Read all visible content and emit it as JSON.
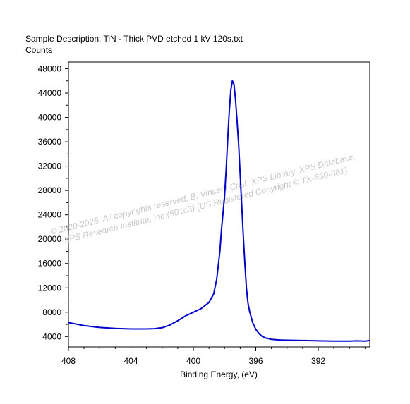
{
  "header": {
    "sample_description": "Sample Description:  TiN - Thick PVD etched 1 kV 120s.txt",
    "y_unit": "Counts"
  },
  "watermark": {
    "line1": "© 2020-2025,  All copyrights reserved,    B. Vincent Crist,  XPS Library, XPS Database,",
    "line2": "XPS Research Institute, Inc (501c3)   (US Registered Copyright © TX-560-881)"
  },
  "colors": {
    "series": "#0000cc",
    "axis": "#000000",
    "watermark": "#c8c8c8"
  },
  "chart_data": {
    "type": "line",
    "title": "",
    "xlabel": "Binding Energy, (eV)",
    "ylabel": "Counts",
    "x_reversed": true,
    "xlim": [
      408,
      388.7
    ],
    "ylim": [
      2300,
      49100
    ],
    "x_ticks": [
      408,
      404,
      400,
      396,
      392
    ],
    "x_tick_labels": [
      "408",
      "404",
      "400",
      "396",
      "392"
    ],
    "y_ticks": [
      4000,
      8000,
      12000,
      16000,
      20000,
      24000,
      28000,
      32000,
      36000,
      40000,
      44000,
      48000
    ],
    "y_tick_labels": [
      "4000",
      "8000",
      "12000",
      "16000",
      "20000",
      "24000",
      "28000",
      "32000",
      "36000",
      "40000",
      "44000",
      "48000"
    ],
    "grid": false,
    "legend": "none",
    "series": [
      {
        "x": [
          408.0,
          407.0,
          406.0,
          405.0,
          404.0,
          403.0,
          402.5,
          402.0,
          401.5,
          401.0,
          400.5,
          400.0,
          399.5,
          399.0,
          398.7,
          398.5,
          398.3,
          398.2,
          398.0,
          397.9,
          397.8,
          397.7,
          397.6,
          397.5,
          397.4,
          397.3,
          397.2,
          397.1,
          397.0,
          396.9,
          396.8,
          396.7,
          396.6,
          396.5,
          396.4,
          396.3,
          396.2,
          396.0,
          395.8,
          395.6,
          395.4,
          395.0,
          394.5,
          394.0,
          393.0,
          392.0,
          391.0,
          390.0,
          389.5,
          389.0,
          388.7
        ],
        "y": [
          6300,
          5800,
          5500,
          5350,
          5250,
          5250,
          5300,
          5450,
          5900,
          6600,
          7400,
          8000,
          8600,
          9600,
          11000,
          13500,
          18000,
          21500,
          27000,
          31500,
          36500,
          41000,
          44500,
          46000,
          45500,
          43000,
          39500,
          35500,
          30500,
          25500,
          20500,
          16000,
          12000,
          9500,
          8200,
          7200,
          6300,
          5200,
          4500,
          4050,
          3800,
          3550,
          3450,
          3400,
          3350,
          3300,
          3250,
          3250,
          3300,
          3250,
          3350
        ]
      }
    ]
  }
}
